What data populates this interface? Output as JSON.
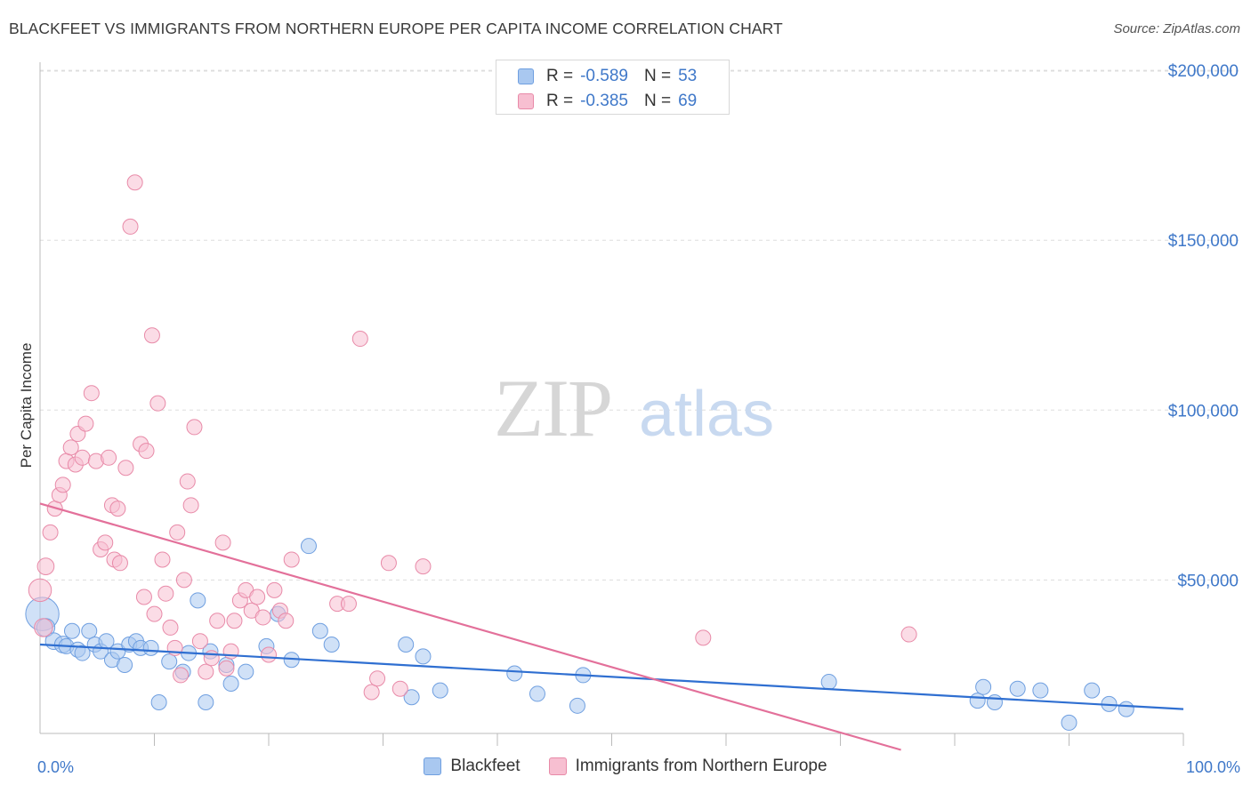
{
  "title": "BLACKFEET VS IMMIGRANTS FROM NORTHERN EUROPE PER CAPITA INCOME CORRELATION CHART",
  "source": "Source: ZipAtlas.com",
  "watermark": {
    "zip": "ZIP",
    "atlas": "atlas"
  },
  "legend": {
    "rows": [
      {
        "r_label": "R =",
        "r_value": "-0.589",
        "n_label": "N =",
        "n_value": "53",
        "color": "#a9c8f0",
        "border": "#6f9fe0"
      },
      {
        "r_label": "R =",
        "r_value": "-0.385",
        "n_label": "N =",
        "n_value": "69",
        "color": "#f7bfd1",
        "border": "#e88aa8"
      }
    ]
  },
  "bottom_legend": {
    "items": [
      "Blackfeet",
      "Immigrants from Northern Europe"
    ]
  },
  "colors": {
    "blue_fill": "#a9c8f0",
    "blue_stroke": "#6f9fe0",
    "blue_line": "#2f6fd1",
    "pink_fill": "#f7bfd1",
    "pink_stroke": "#e88aa8",
    "pink_line": "#e3709a",
    "tick_text": "#3f78c9",
    "grid": "#dddddd"
  },
  "chart_data": {
    "type": "scatter",
    "title": "BLACKFEET VS IMMIGRANTS FROM NORTHERN EUROPE PER CAPITA INCOME CORRELATION CHART",
    "ylabel": "Per Capita Income",
    "xlabel": "",
    "xlim": [
      0,
      100
    ],
    "ylim": [
      0,
      205000
    ],
    "y_ticks": [
      {
        "value": 50000,
        "label": "$50,000"
      },
      {
        "value": 100000,
        "label": "$100,000"
      },
      {
        "value": 150000,
        "label": "$150,000"
      },
      {
        "value": 200000,
        "label": "$200,000"
      }
    ],
    "x_tick_labels": {
      "left": "0.0%",
      "right": "100.0%"
    },
    "x_minor_ticks": [
      10,
      20,
      30,
      40,
      50,
      60,
      70,
      80,
      90,
      100
    ],
    "grid": true,
    "legend_position": "top-center",
    "series": [
      {
        "name": "Blackfeet",
        "points": [
          [
            0.2,
            40000,
            22
          ],
          [
            0.5,
            36000,
            12
          ],
          [
            1.2,
            32000,
            11
          ],
          [
            2.0,
            31000,
            11
          ],
          [
            2.3,
            30500,
            10
          ],
          [
            2.8,
            35000,
            10
          ],
          [
            3.3,
            29500,
            10
          ],
          [
            3.7,
            28500,
            10
          ],
          [
            4.3,
            35000,
            10
          ],
          [
            4.8,
            31000,
            10
          ],
          [
            5.3,
            29000,
            10
          ],
          [
            5.8,
            32000,
            10
          ],
          [
            6.3,
            26500,
            10
          ],
          [
            6.8,
            29000,
            10
          ],
          [
            7.4,
            25000,
            10
          ],
          [
            7.8,
            31000,
            10
          ],
          [
            8.4,
            32000,
            10
          ],
          [
            8.8,
            30000,
            10
          ],
          [
            9.7,
            30000,
            10
          ],
          [
            10.4,
            14000,
            10
          ],
          [
            11.3,
            26000,
            10
          ],
          [
            12.5,
            23000,
            10
          ],
          [
            13.0,
            28500,
            10
          ],
          [
            13.8,
            44000,
            10
          ],
          [
            14.5,
            14000,
            10
          ],
          [
            14.9,
            29000,
            10
          ],
          [
            16.3,
            25000,
            10
          ],
          [
            16.7,
            19500,
            10
          ],
          [
            18.0,
            23000,
            10
          ],
          [
            19.8,
            30500,
            10
          ],
          [
            20.8,
            40000,
            10
          ],
          [
            22.0,
            26500,
            10
          ],
          [
            23.5,
            60000,
            10
          ],
          [
            24.5,
            35000,
            10
          ],
          [
            25.5,
            31000,
            10
          ],
          [
            32.0,
            31000,
            10
          ],
          [
            32.5,
            15500,
            10
          ],
          [
            33.5,
            27500,
            10
          ],
          [
            35.0,
            17500,
            10
          ],
          [
            41.5,
            22500,
            10
          ],
          [
            43.5,
            16500,
            10
          ],
          [
            47.0,
            13000,
            10
          ],
          [
            47.5,
            22000,
            10
          ],
          [
            69.0,
            20000,
            10
          ],
          [
            82.0,
            14500,
            10
          ],
          [
            82.5,
            18500,
            10
          ],
          [
            83.5,
            14000,
            10
          ],
          [
            85.5,
            18000,
            10
          ],
          [
            87.5,
            17500,
            10
          ],
          [
            90.0,
            8000,
            10
          ],
          [
            92.0,
            17500,
            10
          ],
          [
            93.5,
            13500,
            10
          ],
          [
            95.0,
            12000,
            10
          ]
        ],
        "trend": {
          "x": [
            0,
            100
          ],
          "y": [
            31000,
            12000
          ]
        }
      },
      {
        "name": "Immigrants from Northern Europe",
        "points": [
          [
            0.0,
            47000,
            15
          ],
          [
            0.3,
            36000,
            12
          ],
          [
            0.5,
            54000,
            11
          ],
          [
            0.9,
            64000,
            10
          ],
          [
            1.3,
            71000,
            10
          ],
          [
            1.7,
            75000,
            10
          ],
          [
            2.0,
            78000,
            10
          ],
          [
            2.3,
            85000,
            10
          ],
          [
            2.7,
            89000,
            10
          ],
          [
            3.1,
            84000,
            10
          ],
          [
            3.3,
            93000,
            10
          ],
          [
            3.7,
            86000,
            10
          ],
          [
            4.0,
            96000,
            10
          ],
          [
            4.5,
            105000,
            10
          ],
          [
            4.9,
            85000,
            10
          ],
          [
            5.3,
            59000,
            10
          ],
          [
            5.7,
            61000,
            10
          ],
          [
            6.0,
            86000,
            10
          ],
          [
            6.3,
            72000,
            10
          ],
          [
            6.5,
            56000,
            10
          ],
          [
            6.8,
            71000,
            10
          ],
          [
            7.0,
            55000,
            10
          ],
          [
            7.5,
            83000,
            10
          ],
          [
            7.9,
            154000,
            10
          ],
          [
            8.3,
            167000,
            10
          ],
          [
            8.8,
            90000,
            10
          ],
          [
            9.1,
            45000,
            10
          ],
          [
            9.3,
            88000,
            10
          ],
          [
            9.8,
            122000,
            10
          ],
          [
            10.0,
            40000,
            10
          ],
          [
            10.3,
            102000,
            10
          ],
          [
            10.7,
            56000,
            10
          ],
          [
            11.0,
            46000,
            10
          ],
          [
            11.4,
            36000,
            10
          ],
          [
            11.8,
            30000,
            10
          ],
          [
            12.0,
            64000,
            10
          ],
          [
            12.3,
            22000,
            10
          ],
          [
            12.6,
            50000,
            10
          ],
          [
            12.9,
            79000,
            10
          ],
          [
            13.2,
            72000,
            10
          ],
          [
            13.5,
            95000,
            10
          ],
          [
            14.0,
            32000,
            10
          ],
          [
            14.5,
            23000,
            10
          ],
          [
            15.0,
            27000,
            10
          ],
          [
            15.5,
            38000,
            10
          ],
          [
            16.0,
            61000,
            10
          ],
          [
            16.3,
            24000,
            10
          ],
          [
            16.7,
            29000,
            10
          ],
          [
            17.0,
            38000,
            10
          ],
          [
            17.5,
            44000,
            10
          ],
          [
            18.0,
            47000,
            10
          ],
          [
            18.5,
            41000,
            10
          ],
          [
            19.0,
            45000,
            10
          ],
          [
            19.5,
            39000,
            10
          ],
          [
            20.0,
            28000,
            10
          ],
          [
            20.5,
            47000,
            10
          ],
          [
            21.0,
            41000,
            10
          ],
          [
            21.5,
            38000,
            10
          ],
          [
            22.0,
            56000,
            10
          ],
          [
            26.0,
            43000,
            10
          ],
          [
            27.0,
            43000,
            10
          ],
          [
            28.0,
            121000,
            10
          ],
          [
            29.0,
            17000,
            10
          ],
          [
            29.5,
            21000,
            10
          ],
          [
            30.5,
            55000,
            10
          ],
          [
            31.5,
            18000,
            10
          ],
          [
            33.5,
            54000,
            10
          ],
          [
            58.0,
            33000,
            10
          ],
          [
            76.0,
            34000,
            10
          ]
        ],
        "trend": {
          "x": [
            0,
            75.3
          ],
          "y": [
            72500,
            0
          ]
        }
      }
    ]
  }
}
